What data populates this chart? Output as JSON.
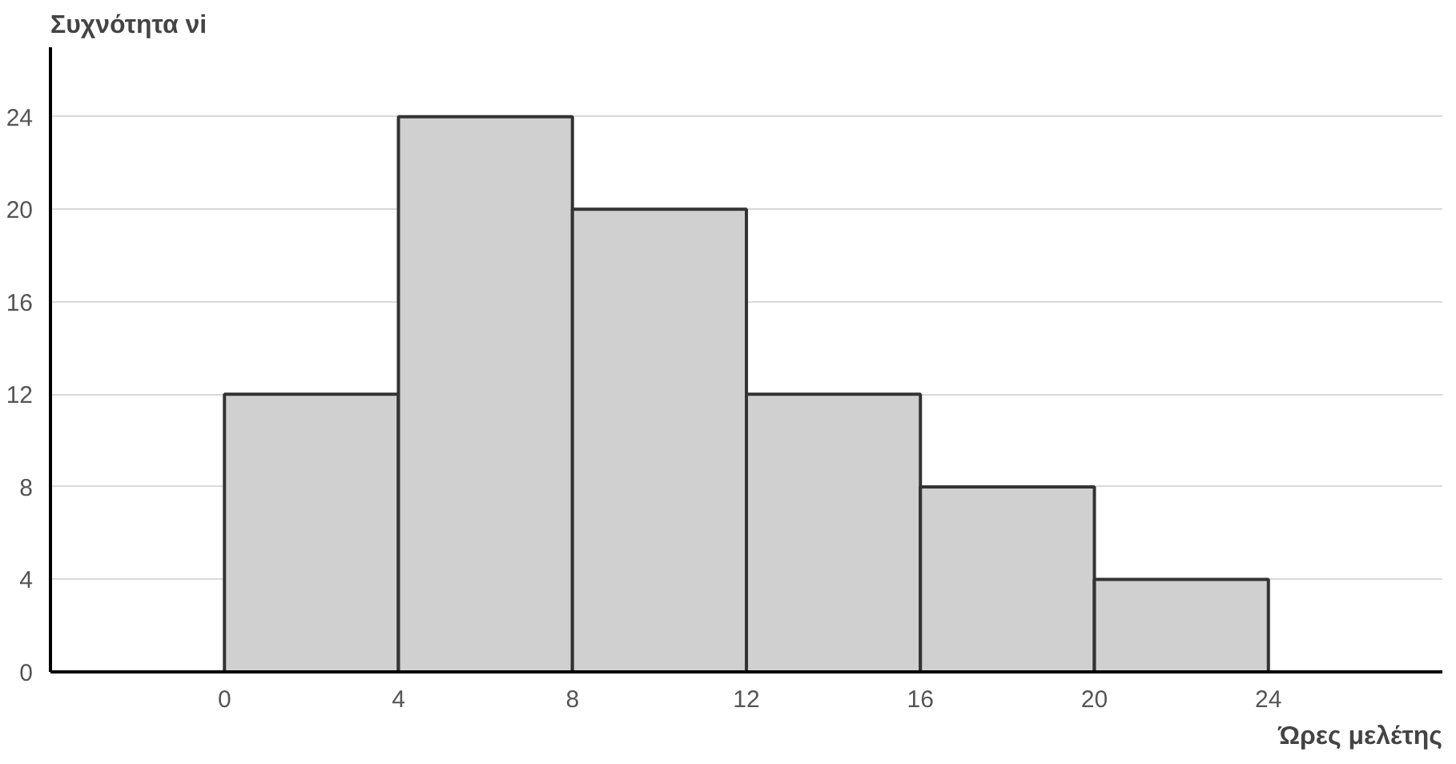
{
  "chart_data": {
    "type": "histogram",
    "ylabel": "Συχνότητα νi",
    "xlabel": "Ώρες μελέτης",
    "bins": [
      0,
      4,
      8,
      12,
      16,
      20,
      24
    ],
    "values": [
      12,
      24,
      20,
      12,
      8,
      4
    ],
    "color": "#d0d0d0",
    "xlim": [
      -4,
      28
    ],
    "ylim": [
      0,
      27
    ],
    "xticks": [
      0,
      4,
      8,
      12,
      16,
      20,
      24
    ],
    "yticks": [
      0,
      4,
      8,
      12,
      16,
      20,
      24
    ],
    "grid": "y"
  }
}
